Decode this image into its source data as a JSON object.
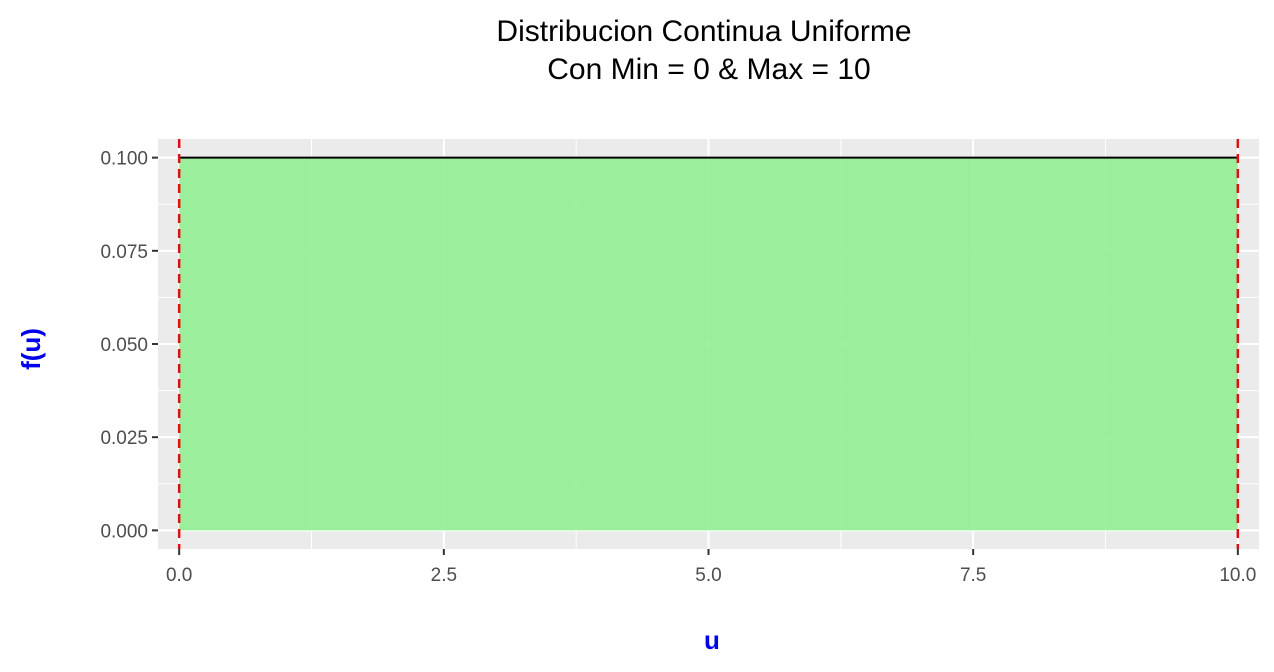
{
  "chart_data": {
    "type": "area",
    "title": "Distribucion Continua Uniforme",
    "subtitle": "Con Min = 0 & Max = 10",
    "xlabel": "u",
    "ylabel": "f(u)",
    "xlim": [
      -0.2,
      10.2
    ],
    "ylim": [
      -0.005,
      0.105
    ],
    "x_ticks": [
      0.0,
      2.5,
      5.0,
      7.5,
      10.0
    ],
    "x_tick_labels": [
      "0.0",
      "2.5",
      "5.0",
      "7.5",
      "10.0"
    ],
    "y_ticks": [
      0.0,
      0.025,
      0.05,
      0.075,
      0.1
    ],
    "y_tick_labels": [
      "0.000",
      "0.025",
      "0.050",
      "0.075",
      "0.100"
    ],
    "x_minor_ticks": [
      1.25,
      3.75,
      6.25,
      8.75
    ],
    "y_minor_ticks": [
      0.0125,
      0.0375,
      0.0625,
      0.0875
    ],
    "grid": true,
    "series": [
      {
        "x": [
          0,
          10
        ],
        "y": [
          0.1,
          0.1
        ]
      }
    ],
    "vlines": [
      0,
      10
    ],
    "colors": {
      "panel": "#ebebeb",
      "grid": "#ffffff",
      "fill": "#90ee90",
      "density_line": "#000000",
      "vline": "#dd1111",
      "axis_title": "#0000ee"
    }
  }
}
